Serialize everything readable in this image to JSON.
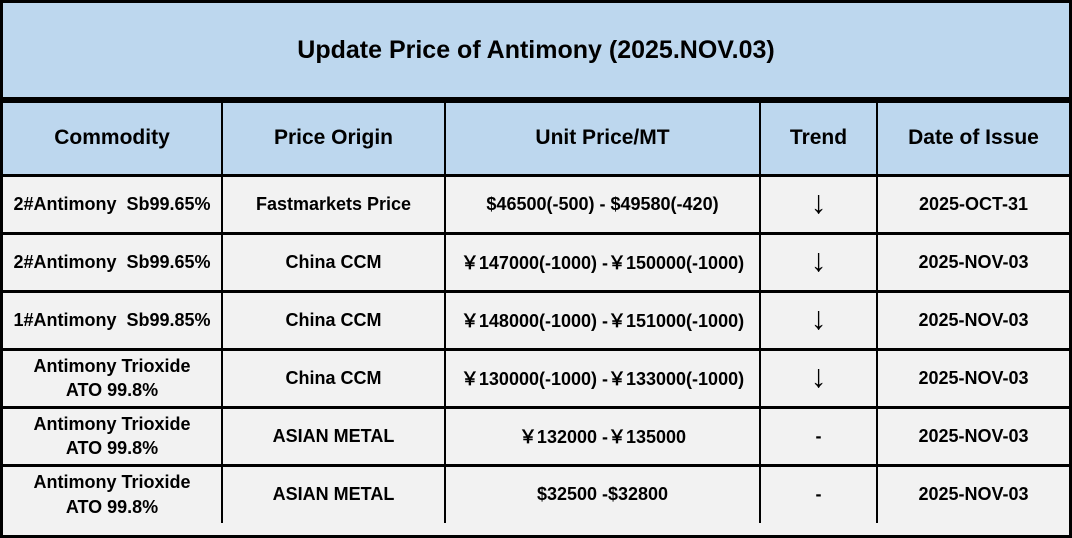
{
  "title": "Update Price of Antimony (2025.NOV.03)",
  "colors": {
    "band_bg": "#BDD7EE",
    "row_bg": "#F2F2F2",
    "border": "#000000",
    "text": "#000000"
  },
  "table": {
    "columns": [
      "Commodity",
      "Price Origin",
      "Unit Price/MT",
      "Trend",
      "Date of Issue"
    ],
    "keys": [
      "commodity",
      "origin",
      "price",
      "trend",
      "date"
    ],
    "trend_down_symbol": "↓",
    "trend_flat_symbol": "-",
    "rows": [
      {
        "commodity": "2#Antimony  Sb99.65%",
        "origin": "Fastmarkets Price",
        "price": "$46500(-500) - $49580(-420)",
        "trend": "↓",
        "date": "2025-OCT-31"
      },
      {
        "commodity": "2#Antimony  Sb99.65%",
        "origin": "China CCM",
        "price": "￥147000(-1000) -￥150000(-1000)",
        "trend": "↓",
        "date": "2025-NOV-03"
      },
      {
        "commodity": "1#Antimony  Sb99.85%",
        "origin": "China CCM",
        "price": "￥148000(-1000) -￥151000(-1000)",
        "trend": "↓",
        "date": "2025-NOV-03"
      },
      {
        "commodity": "Antimony Trioxide\nATO 99.8%",
        "origin": "China CCM",
        "price": "￥130000(-1000) -￥133000(-1000)",
        "trend": "↓",
        "date": "2025-NOV-03"
      },
      {
        "commodity": "Antimony Trioxide\nATO 99.8%",
        "origin": "ASIAN METAL",
        "price": "￥132000 -￥135000",
        "trend": "-",
        "date": "2025-NOV-03"
      },
      {
        "commodity": "Antimony Trioxide\nATO 99.8%",
        "origin": "ASIAN METAL",
        "price": "$32500 -$32800",
        "trend": "-",
        "date": "2025-NOV-03"
      }
    ]
  }
}
